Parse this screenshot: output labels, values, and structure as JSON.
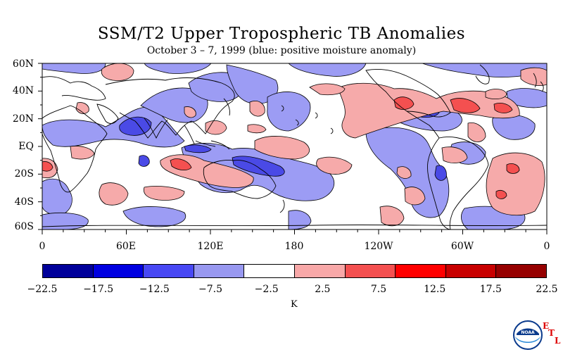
{
  "title": "SSM/T2 Upper Tropospheric TB Anomalies",
  "subtitle": "October 3 – 7, 1999 (blue: positive moisture anomaly)",
  "map": {
    "lat_labels": [
      "60N",
      "40N",
      "20N",
      "EQ",
      "20S",
      "40S",
      "60S"
    ],
    "lon_labels": [
      "0",
      "60E",
      "120E",
      "180",
      "120W",
      "60W",
      "0"
    ],
    "lat_range": [
      -60,
      60
    ],
    "lon_range_east": [
      0,
      360
    ]
  },
  "colorbar": {
    "ticks": [
      "−22.5",
      "−17.5",
      "−12.5",
      "−7.5",
      "−2.5",
      "2.5",
      "7.5",
      "12.5",
      "17.5",
      "22.5"
    ],
    "colors": [
      "#00009a",
      "#0000e0",
      "#4848f4",
      "#9898f0",
      "#ffffff",
      "#f8a8a8",
      "#f45050",
      "#ff0000",
      "#c80000",
      "#960000"
    ],
    "unit": "K"
  },
  "logo": {
    "agency_text": "NOAA",
    "lab_letters": [
      "E",
      "T",
      "L"
    ]
  },
  "anomaly_colors": {
    "moist": "#9c9cf4",
    "moist_strong": "#4a4ae6",
    "dry": "#f6aaaa",
    "dry_strong": "#f45050",
    "contour": "#000000",
    "coast": "#000000"
  }
}
